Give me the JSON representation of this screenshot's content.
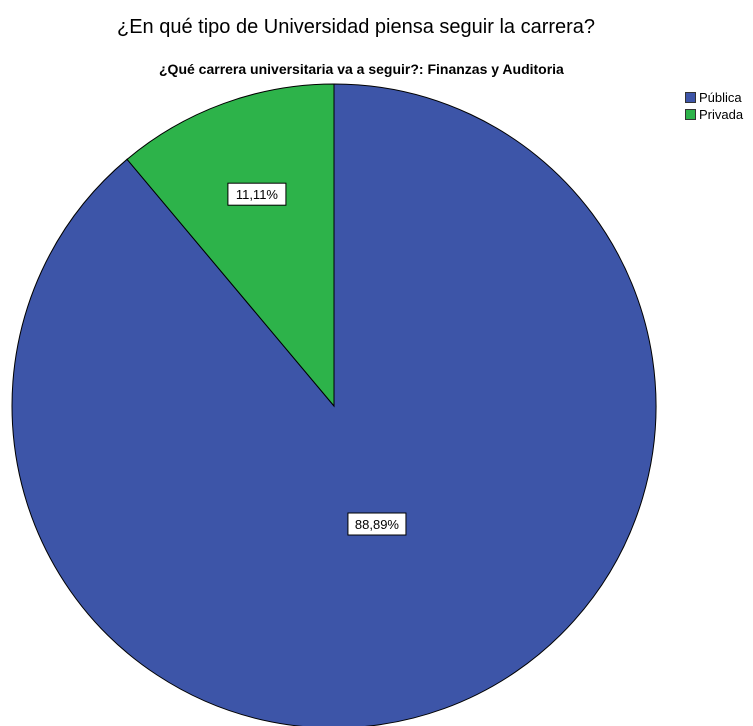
{
  "chart_data": {
    "type": "pie",
    "title": "¿En qué tipo de Universidad piensa seguir la carrera?",
    "subtitle": "¿Qué carrera universitaria va a seguir?: Finanzas y Auditoria",
    "slices": [
      {
        "label": "Pública",
        "value": 88.89,
        "data_label": "88,89%",
        "color": "#3d55a8"
      },
      {
        "label": "Privada",
        "value": 11.11,
        "data_label": "11,11%",
        "color": "#2db34a"
      }
    ],
    "legend_position": "top-right"
  }
}
